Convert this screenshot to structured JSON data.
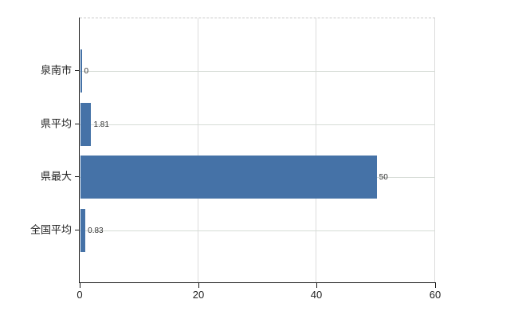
{
  "chart_colors": {
    "background": "#ffffff",
    "bar": "#4572a7",
    "axis": "#1a1a1a",
    "grid_horizontal": "#d6dcd6",
    "grid_vertical": "#dcdcdc",
    "plot_border_top": "#c9c9c9",
    "category_label": "#222222",
    "tick_label": "#222222",
    "value_label": "#333333"
  },
  "chart_data": {
    "type": "bar",
    "orientation": "horizontal",
    "title": "",
    "xlabel": "",
    "ylabel": "",
    "categories": [
      "泉南市",
      "県平均",
      "県最大",
      "全国平均"
    ],
    "values": [
      0,
      1.81,
      50,
      0.83
    ],
    "value_labels": [
      "0",
      "1.81",
      "50",
      "0.83"
    ],
    "xlim": [
      0,
      60
    ],
    "x_ticks": [
      0,
      20,
      40,
      60
    ],
    "x_tick_labels": [
      "0",
      "20",
      "40",
      "60"
    ],
    "grid": true,
    "legend": false,
    "plot_border_top_style": "dashed"
  }
}
